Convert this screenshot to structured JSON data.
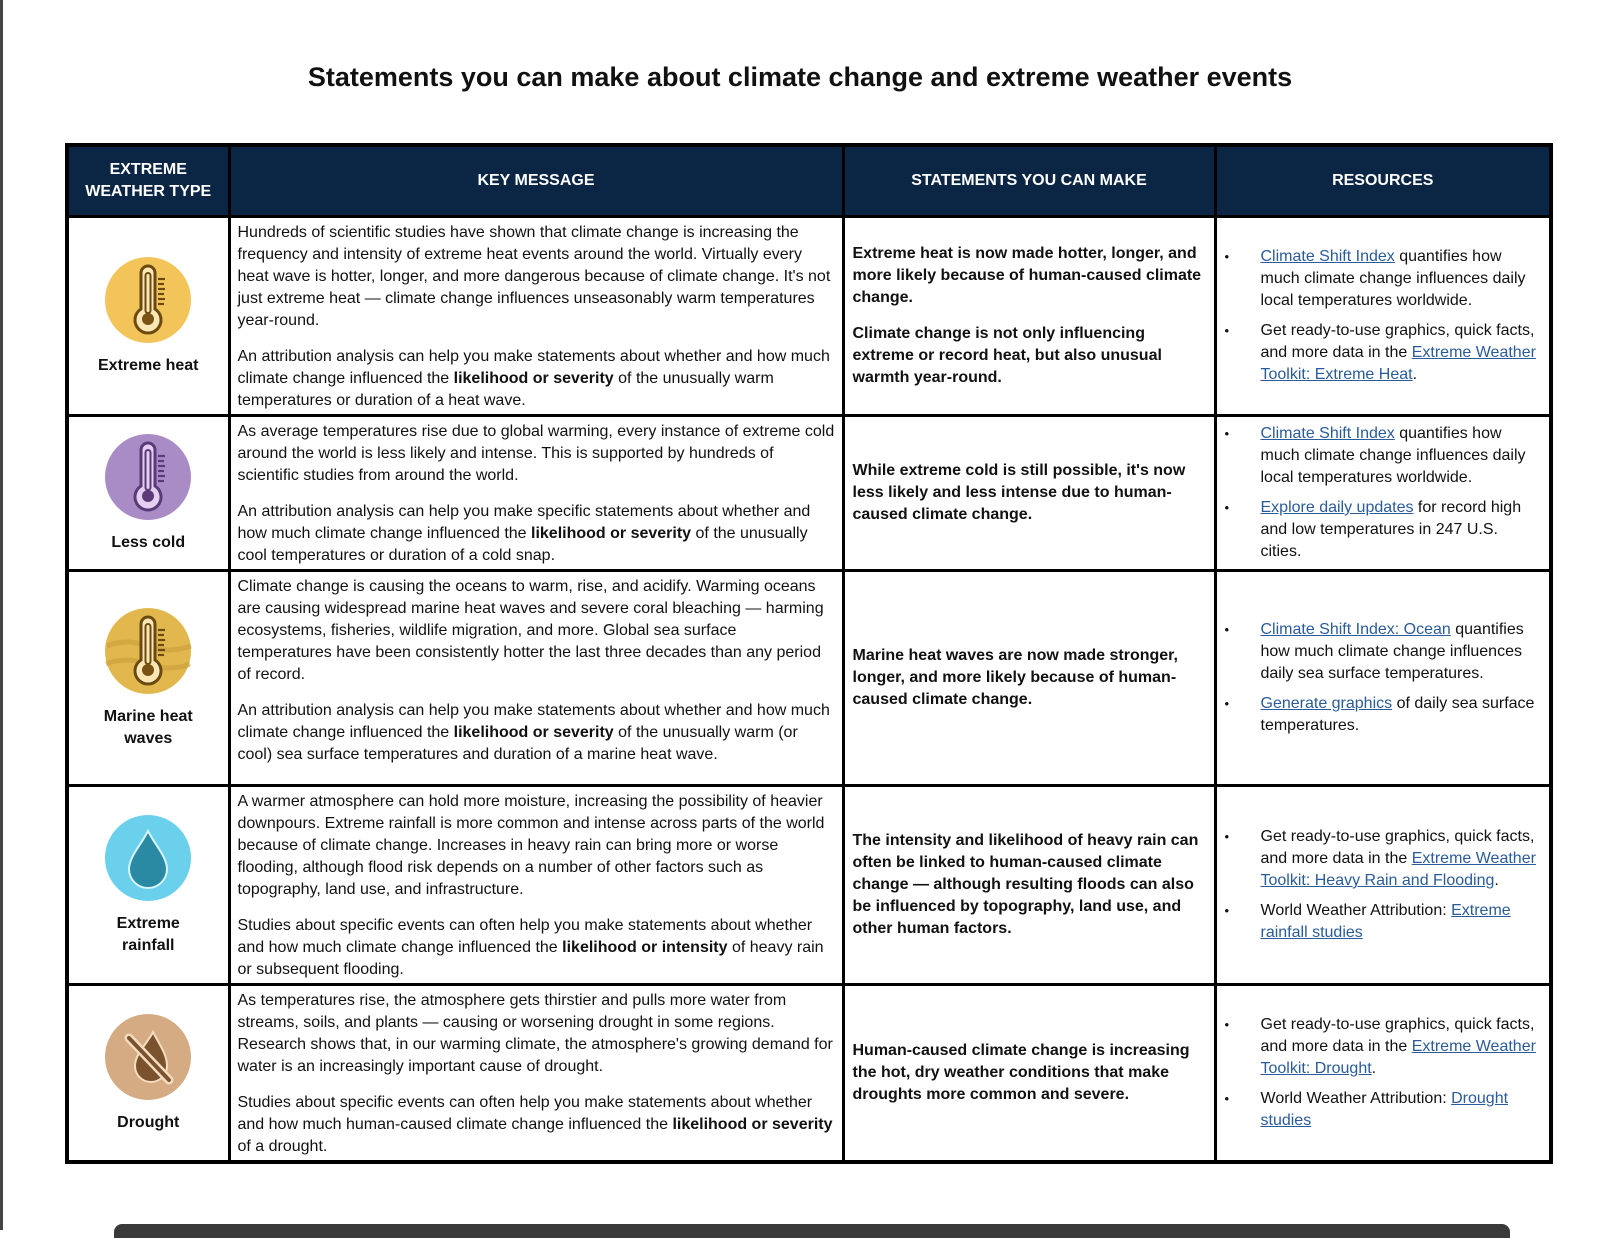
{
  "title": "Statements you can make about climate change and extreme weather events",
  "headers": [
    "EXTREME WEATHER TYPE",
    "KEY MESSAGE",
    "STATEMENTS YOU CAN MAKE",
    "RESOURCES"
  ],
  "colors": {
    "header_bg": "#0b2545",
    "link": "#2a5b9a"
  },
  "rows": [
    {
      "type": "Extreme heat",
      "icon": "thermometer-hot-icon",
      "icon_color": "#f2c45a",
      "key_message": [
        [
          {
            "t": "Hundreds of scientific studies have shown that climate change is increasing the frequency and intensity of extreme heat events around the world. Virtually every heat wave is hotter, longer, and more dangerous because of climate change. It's not just extreme heat — climate change influences unseasonably warm temperatures year-round."
          }
        ],
        [
          {
            "t": "An attribution analysis can help you make statements about whether and how much climate change influenced the "
          },
          {
            "t": "likelihood or severity",
            "b": true
          },
          {
            "t": " of the unusually warm temperatures or duration of a heat wave."
          }
        ]
      ],
      "statements": [
        "Extreme heat is now made hotter, longer, and more likely because of human-caused climate change.",
        "Climate change is not only influencing extreme or record heat, but also unusual warmth year-round."
      ],
      "resources": [
        [
          {
            "t": "Climate Shift Index",
            "link": true
          },
          {
            "t": " quantifies how much climate change influences daily local temperatures worldwide."
          }
        ],
        [
          {
            "t": "Get ready-to-use graphics, quick facts, and more data in the "
          },
          {
            "t": "Extreme Weather Toolkit: Extreme Heat",
            "link": true
          },
          {
            "t": "."
          }
        ]
      ]
    },
    {
      "type": "Less cold",
      "icon": "thermometer-cold-icon",
      "icon_color": "#a98bc6",
      "key_message": [
        [
          {
            "t": "As average temperatures rise due to global warming, every instance of extreme cold around the world is less likely and intense. This is supported by hundreds of scientific studies from around the world."
          }
        ],
        [
          {
            "t": "An attribution analysis can help you make specific statements about whether and how much climate change influenced the "
          },
          {
            "t": "likelihood or severity",
            "b": true
          },
          {
            "t": " of the unusually cool temperatures or duration of a cold snap."
          }
        ]
      ],
      "statements": [
        "While extreme cold is still possible, it's now less likely and less intense due to human-caused climate change."
      ],
      "resources": [
        [
          {
            "t": "Climate Shift Index",
            "link": true
          },
          {
            "t": " quantifies how much climate change influences daily local temperatures worldwide."
          }
        ],
        [
          {
            "t": "Explore daily updates",
            "link": true
          },
          {
            "t": " for record high and low temperatures in 247 U.S. cities."
          }
        ]
      ]
    },
    {
      "type": "Marine heat waves",
      "icon": "thermometer-ocean-icon",
      "icon_color": "#e2b84e",
      "key_message": [
        [
          {
            "t": "Climate change is causing the oceans to warm, rise, and acidify. Warming oceans are causing widespread marine heat waves and severe coral bleaching — harming ecosystems, fisheries, wildlife migration, and more. Global sea surface temperatures have been consistently hotter the last three decades than any period of record."
          }
        ],
        [
          {
            "t": "An attribution analysis can help you make statements about whether and how much climate change influenced the "
          },
          {
            "t": "likelihood or severity",
            "b": true
          },
          {
            "t": " of the unusually warm (or cool) sea surface temperatures and duration of a marine heat wave."
          }
        ]
      ],
      "statements": [
        "Marine heat waves are now made stronger, longer, and more likely because of human-caused climate change."
      ],
      "resources": [
        [
          {
            "t": "Climate Shift Index: Ocean",
            "link": true
          },
          {
            "t": " quantifies how much climate change influences daily sea surface temperatures."
          }
        ],
        [
          {
            "t": "Generate graphics",
            "link": true
          },
          {
            "t": " of daily sea surface temperatures."
          }
        ]
      ]
    },
    {
      "type": "Extreme rainfall",
      "icon": "water-drop-icon",
      "icon_color": "#6bd0ec",
      "key_message": [
        [
          {
            "t": "A warmer atmosphere can hold more moisture, increasing the possibility of heavier downpours. Extreme rainfall is more common and intense across parts of the world because of climate change. Increases in heavy rain can bring more or worse flooding, although flood risk depends on a number of other factors such as topography, land use, and infrastructure."
          }
        ],
        [
          {
            "t": "Studies about specific events can often help you make statements about whether and how much climate change influenced the "
          },
          {
            "t": "likelihood or intensity",
            "b": true
          },
          {
            "t": " of heavy rain or subsequent flooding."
          }
        ]
      ],
      "statements": [
        "The intensity and likelihood of heavy rain can often be linked to human-caused climate change — although resulting floods can also be influenced by topography, land use, and other human factors."
      ],
      "resources": [
        [
          {
            "t": "Get ready-to-use graphics, quick facts, and more data in the "
          },
          {
            "t": "Extreme Weather Toolkit: Heavy Rain and Flooding",
            "link": true
          },
          {
            "t": "."
          }
        ],
        [
          {
            "t": "World Weather Attribution: "
          },
          {
            "t": "Extreme rainfall studies",
            "link": true
          }
        ]
      ]
    },
    {
      "type": "Drought",
      "icon": "no-water-drop-icon",
      "icon_color": "#d4ab83",
      "key_message": [
        [
          {
            "t": "As temperatures rise, the atmosphere gets thirstier and pulls more water from streams, soils, and plants — causing or worsening drought in some regions. Research shows that, in our warming climate, the atmosphere's growing demand for water is an increasingly important cause of drought."
          }
        ],
        [
          {
            "t": "Studies about specific events can often help you make statements about whether and how much human-caused climate change influenced the "
          },
          {
            "t": "likelihood or severity",
            "b": true
          },
          {
            "t": " of a drought."
          }
        ]
      ],
      "statements": [
        "Human-caused climate change is increasing the hot, dry weather conditions that make droughts more common and severe."
      ],
      "resources": [
        [
          {
            "t": "Get ready-to-use graphics, quick facts, and more data in the "
          },
          {
            "t": "Extreme Weather Toolkit: Drought",
            "link": true
          },
          {
            "t": "."
          }
        ],
        [
          {
            "t": "World Weather Attribution: "
          },
          {
            "t": "Drought studies",
            "link": true
          }
        ]
      ]
    }
  ]
}
